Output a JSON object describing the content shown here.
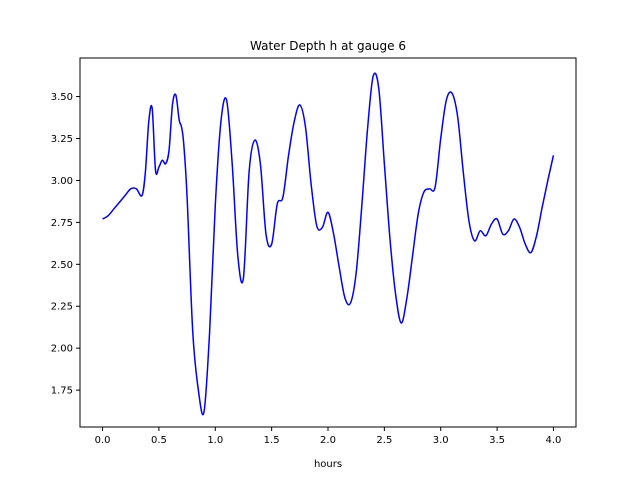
{
  "chart_data": {
    "type": "line",
    "title": "Water Depth h at gauge 6",
    "xlabel": "hours",
    "ylabel": "",
    "xlim": [
      -0.2,
      4.2
    ],
    "ylim": [
      1.53,
      3.73
    ],
    "xticks": [
      0.0,
      0.5,
      1.0,
      1.5,
      2.0,
      2.5,
      3.0,
      3.5,
      4.0
    ],
    "xtick_labels": [
      "0.0",
      "0.5",
      "1.0",
      "1.5",
      "2.0",
      "2.5",
      "3.0",
      "3.5",
      "4.0"
    ],
    "yticks": [
      1.75,
      2.0,
      2.25,
      2.5,
      2.75,
      3.0,
      3.25,
      3.5
    ],
    "ytick_labels": [
      "1.75",
      "2.00",
      "2.25",
      "2.50",
      "2.75",
      "3.00",
      "3.25",
      "3.50"
    ],
    "grid": false,
    "series": [
      {
        "color": "#0000ff",
        "x": [
          0.0,
          0.05,
          0.1,
          0.15,
          0.2,
          0.25,
          0.3,
          0.35,
          0.38,
          0.41,
          0.44,
          0.47,
          0.5,
          0.53,
          0.56,
          0.59,
          0.62,
          0.65,
          0.68,
          0.7,
          0.72,
          0.75,
          0.8,
          0.85,
          0.9,
          0.95,
          1.0,
          1.05,
          1.1,
          1.15,
          1.2,
          1.25,
          1.3,
          1.35,
          1.4,
          1.45,
          1.5,
          1.55,
          1.6,
          1.65,
          1.7,
          1.75,
          1.8,
          1.85,
          1.9,
          1.95,
          2.0,
          2.05,
          2.1,
          2.15,
          2.2,
          2.25,
          2.3,
          2.35,
          2.4,
          2.45,
          2.5,
          2.55,
          2.6,
          2.65,
          2.7,
          2.75,
          2.8,
          2.85,
          2.9,
          2.95,
          3.0,
          3.05,
          3.1,
          3.15,
          3.2,
          3.25,
          3.3,
          3.35,
          3.4,
          3.45,
          3.5,
          3.55,
          3.6,
          3.65,
          3.7,
          3.75,
          3.8,
          3.85,
          3.9,
          3.95,
          4.0
        ],
        "y": [
          2.77,
          2.79,
          2.83,
          2.87,
          2.91,
          2.95,
          2.95,
          2.91,
          3.05,
          3.35,
          3.43,
          3.06,
          3.08,
          3.12,
          3.1,
          3.18,
          3.45,
          3.51,
          3.36,
          3.32,
          3.22,
          2.9,
          2.1,
          1.75,
          1.62,
          2.1,
          2.85,
          3.35,
          3.48,
          3.1,
          2.55,
          2.42,
          3.05,
          3.24,
          3.1,
          2.68,
          2.62,
          2.86,
          2.9,
          3.15,
          3.35,
          3.45,
          3.32,
          2.98,
          2.73,
          2.72,
          2.81,
          2.68,
          2.48,
          2.3,
          2.27,
          2.45,
          2.85,
          3.3,
          3.62,
          3.55,
          3.1,
          2.65,
          2.32,
          2.15,
          2.3,
          2.55,
          2.8,
          2.93,
          2.95,
          2.96,
          3.25,
          3.48,
          3.52,
          3.38,
          3.05,
          2.76,
          2.64,
          2.7,
          2.67,
          2.74,
          2.77,
          2.68,
          2.7,
          2.77,
          2.72,
          2.62,
          2.57,
          2.67,
          2.84,
          3.0,
          3.15
        ]
      }
    ]
  }
}
